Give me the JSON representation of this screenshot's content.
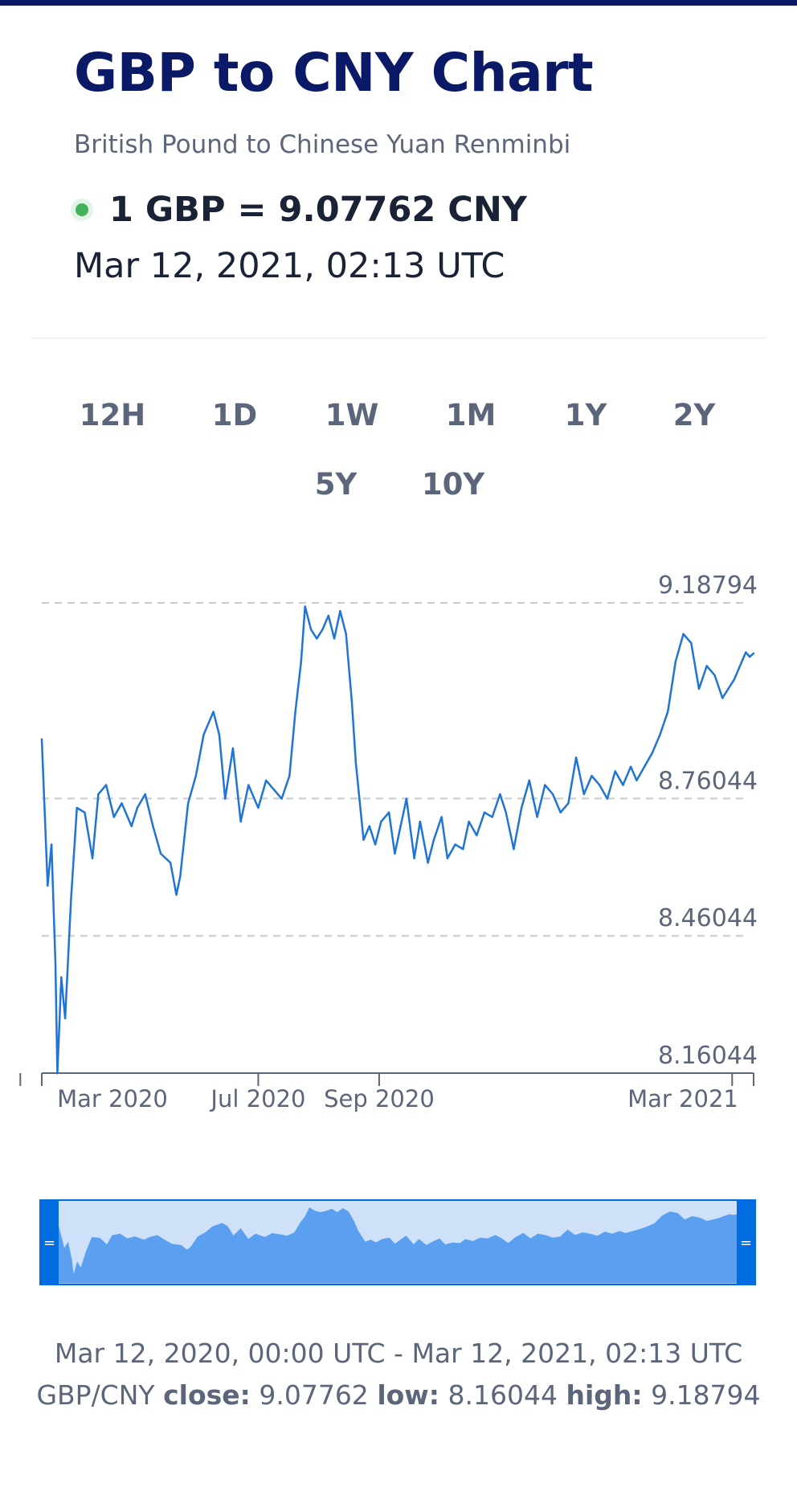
{
  "header": {
    "title": "GBP to CNY Chart",
    "subtitle": "British Pound to Chinese Yuan Renminbi",
    "rate": "1 GBP = 9.07762 CNY",
    "timestamp": "Mar 12, 2021, 02:13 UTC"
  },
  "ranges": [
    {
      "label": "12H",
      "active": false
    },
    {
      "label": "1D",
      "active": false
    },
    {
      "label": "1W",
      "active": false
    },
    {
      "label": "1M",
      "active": false
    },
    {
      "label": "1Y",
      "active": true
    },
    {
      "label": "2Y",
      "active": false
    },
    {
      "label": "5Y",
      "active": false
    },
    {
      "label": "10Y",
      "active": false
    }
  ],
  "colors": {
    "brand": "#0b1a66",
    "accent": "#006ce0",
    "line": "#1f74d6",
    "live": "#41b35a",
    "muted": "#5c667a"
  },
  "chart_data": {
    "type": "line",
    "title": "",
    "xlabel": "",
    "ylabel": "",
    "y_ticks": [
      "9.18794",
      "8.76044",
      "8.46044",
      "8.16044"
    ],
    "x_ticks": [
      {
        "label": "Mar 2020",
        "date": "2020-03-01"
      },
      {
        "label": "Jul 2020",
        "date": "2020-07-01"
      },
      {
        "label": "Sep 2020",
        "date": "2020-09-01"
      },
      {
        "label": "Mar 2021",
        "date": "2021-03-01"
      }
    ],
    "ylim": [
      8.16044,
      9.18794
    ],
    "xlim": [
      "2020-03-12",
      "2021-03-12"
    ],
    "grid": true,
    "series": [
      {
        "x": [
          "2020-03-12",
          "2020-03-15",
          "2020-03-17",
          "2020-03-19",
          "2020-03-20",
          "2020-03-22",
          "2020-03-24",
          "2020-03-27",
          "2020-03-30",
          "2020-04-03",
          "2020-04-07",
          "2020-04-10",
          "2020-04-14",
          "2020-04-18",
          "2020-04-22",
          "2020-04-27",
          "2020-04-30",
          "2020-05-04",
          "2020-05-08",
          "2020-05-12",
          "2020-05-17",
          "2020-05-20",
          "2020-05-22",
          "2020-05-26",
          "2020-05-30",
          "2020-06-03",
          "2020-06-08",
          "2020-06-11",
          "2020-06-14",
          "2020-06-18",
          "2020-06-22",
          "2020-06-26",
          "2020-07-01",
          "2020-07-05",
          "2020-07-09",
          "2020-07-13",
          "2020-07-17",
          "2020-07-20",
          "2020-07-23",
          "2020-07-25",
          "2020-07-28",
          "2020-07-31",
          "2020-08-03",
          "2020-08-06",
          "2020-08-09",
          "2020-08-12",
          "2020-08-15",
          "2020-08-18",
          "2020-08-20",
          "2020-08-24",
          "2020-08-27",
          "2020-08-30",
          "2020-09-02",
          "2020-09-06",
          "2020-09-09",
          "2020-09-12",
          "2020-09-15",
          "2020-09-19",
          "2020-09-22",
          "2020-09-26",
          "2020-09-29",
          "2020-10-03",
          "2020-10-06",
          "2020-10-10",
          "2020-10-14",
          "2020-10-17",
          "2020-10-21",
          "2020-10-25",
          "2020-10-29",
          "2020-11-02",
          "2020-11-05",
          "2020-11-09",
          "2020-11-13",
          "2020-11-17",
          "2020-11-21",
          "2020-11-25",
          "2020-11-29",
          "2020-12-03",
          "2020-12-07",
          "2020-12-11",
          "2020-12-15",
          "2020-12-19",
          "2020-12-23",
          "2020-12-27",
          "2020-12-31",
          "2021-01-04",
          "2021-01-08",
          "2021-01-11",
          "2021-01-15",
          "2021-01-19",
          "2021-01-23",
          "2021-01-27",
          "2021-01-31",
          "2021-02-04",
          "2021-02-08",
          "2021-02-12",
          "2021-02-16",
          "2021-02-20",
          "2021-02-24",
          "2021-02-27",
          "2021-03-02",
          "2021-03-05",
          "2021-03-08",
          "2021-03-10",
          "2021-03-12"
        ],
        "y": [
          8.89,
          8.57,
          8.66,
          8.4,
          8.16,
          8.37,
          8.28,
          8.54,
          8.74,
          8.73,
          8.63,
          8.77,
          8.79,
          8.72,
          8.75,
          8.7,
          8.74,
          8.77,
          8.7,
          8.64,
          8.62,
          8.55,
          8.59,
          8.75,
          8.81,
          8.9,
          8.95,
          8.9,
          8.76,
          8.87,
          8.71,
          8.79,
          8.74,
          8.8,
          8.78,
          8.76,
          8.81,
          8.95,
          9.06,
          9.18,
          9.13,
          9.11,
          9.13,
          9.16,
          9.11,
          9.17,
          9.12,
          8.97,
          8.84,
          8.67,
          8.7,
          8.66,
          8.71,
          8.73,
          8.64,
          8.7,
          8.76,
          8.63,
          8.71,
          8.62,
          8.67,
          8.72,
          8.63,
          8.66,
          8.65,
          8.71,
          8.68,
          8.73,
          8.72,
          8.77,
          8.73,
          8.65,
          8.74,
          8.8,
          8.72,
          8.79,
          8.77,
          8.73,
          8.75,
          8.85,
          8.77,
          8.81,
          8.79,
          8.76,
          8.82,
          8.79,
          8.83,
          8.8,
          8.83,
          8.86,
          8.9,
          8.95,
          9.06,
          9.12,
          9.1,
          9.0,
          9.05,
          9.03,
          8.98,
          9.0,
          9.02,
          9.05,
          9.08,
          9.07,
          9.07762
        ]
      }
    ]
  },
  "navigator": {
    "left_handle": "=",
    "right_handle": "="
  },
  "footer": {
    "range": "Mar 12, 2020, 00:00 UTC - Mar 12, 2021, 02:13 UTC",
    "pair": "GBP/CNY",
    "close_label": "close:",
    "close": "9.07762",
    "low_label": "low:",
    "low": "8.16044",
    "high_label": "high:",
    "high": "9.18794"
  }
}
